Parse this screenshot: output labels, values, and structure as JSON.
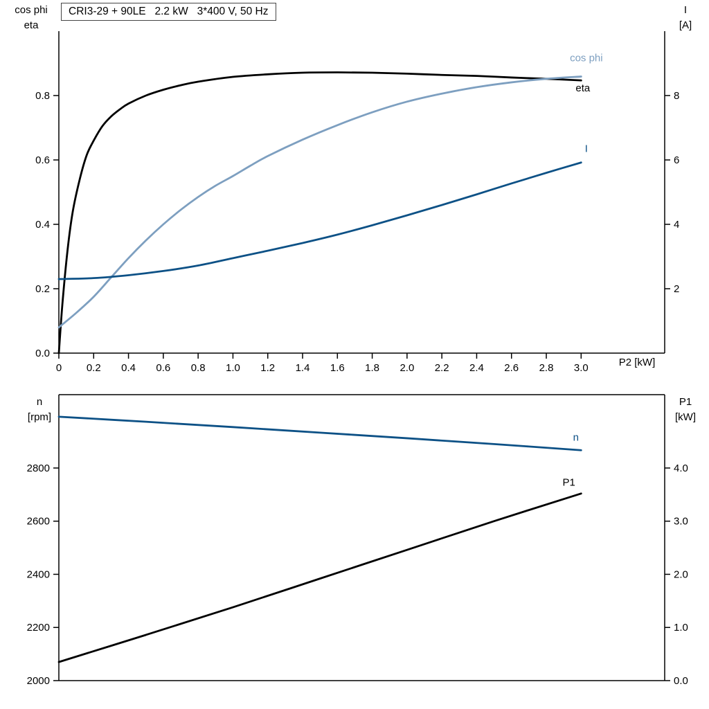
{
  "title_box": "CRI3-29 + 90LE   2.2 kW   3*400 V, 50 Hz",
  "chart_data": [
    {
      "id": "top",
      "type": "line",
      "x_axis": {
        "label": "P2 [kW]",
        "range": [
          0,
          3.48
        ],
        "ticks": [
          0,
          0.2,
          0.4,
          0.6,
          0.8,
          1.0,
          1.2,
          1.4,
          1.6,
          1.8,
          2.0,
          2.2,
          2.4,
          2.6,
          2.8,
          3.0
        ],
        "tick_labels": [
          "0",
          "0.2",
          "0.4",
          "0.6",
          "0.8",
          "1.0",
          "1.2",
          "1.4",
          "1.6",
          "1.8",
          "2.0",
          "2.2",
          "2.4",
          "2.6",
          "2.8",
          "3.0"
        ]
      },
      "left_axis": {
        "label_lines": [
          "cos phi",
          "eta"
        ],
        "range": [
          0,
          1.0
        ],
        "ticks": [
          0.0,
          0.2,
          0.4,
          0.6,
          0.8
        ],
        "tick_labels": [
          "0.0",
          "0.2",
          "0.4",
          "0.6",
          "0.8"
        ]
      },
      "right_axis": {
        "label_lines": [
          "I",
          "[A]"
        ],
        "range": [
          0,
          10
        ],
        "ticks": [
          2,
          4,
          6,
          8
        ],
        "tick_labels": [
          "2",
          "4",
          "6",
          "8"
        ]
      },
      "grid": false,
      "series": [
        {
          "name": "eta",
          "axis": "left",
          "color": "#000000",
          "label": {
            "text": "eta",
            "x": 3.01,
            "y": 0.813
          },
          "points": [
            [
              0,
              0
            ],
            [
              0.02,
              0.15
            ],
            [
              0.05,
              0.32
            ],
            [
              0.08,
              0.44
            ],
            [
              0.12,
              0.54
            ],
            [
              0.16,
              0.615
            ],
            [
              0.2,
              0.66
            ],
            [
              0.25,
              0.705
            ],
            [
              0.3,
              0.735
            ],
            [
              0.35,
              0.757
            ],
            [
              0.4,
              0.775
            ],
            [
              0.5,
              0.8
            ],
            [
              0.6,
              0.818
            ],
            [
              0.7,
              0.832
            ],
            [
              0.8,
              0.843
            ],
            [
              1.0,
              0.858
            ],
            [
              1.2,
              0.866
            ],
            [
              1.4,
              0.871
            ],
            [
              1.6,
              0.872
            ],
            [
              1.8,
              0.871
            ],
            [
              2.0,
              0.868
            ],
            [
              2.2,
              0.864
            ],
            [
              2.4,
              0.861
            ],
            [
              2.6,
              0.856
            ],
            [
              2.8,
              0.852
            ],
            [
              3.0,
              0.847
            ]
          ]
        },
        {
          "name": "cos_phi",
          "axis": "left",
          "color": "#7d9fc0",
          "label": {
            "text": "cos phi",
            "x": 3.03,
            "y": 0.906
          },
          "points": [
            [
              0,
              0.08
            ],
            [
              0.1,
              0.125
            ],
            [
              0.2,
              0.175
            ],
            [
              0.3,
              0.235
            ],
            [
              0.4,
              0.295
            ],
            [
              0.5,
              0.35
            ],
            [
              0.6,
              0.4
            ],
            [
              0.7,
              0.445
            ],
            [
              0.8,
              0.485
            ],
            [
              0.9,
              0.52
            ],
            [
              1.0,
              0.55
            ],
            [
              1.1,
              0.582
            ],
            [
              1.2,
              0.612
            ],
            [
              1.4,
              0.663
            ],
            [
              1.6,
              0.708
            ],
            [
              1.8,
              0.748
            ],
            [
              2.0,
              0.781
            ],
            [
              2.2,
              0.806
            ],
            [
              2.4,
              0.826
            ],
            [
              2.6,
              0.841
            ],
            [
              2.8,
              0.852
            ],
            [
              3.0,
              0.859
            ]
          ]
        },
        {
          "name": "I",
          "axis": "right",
          "color": "#0d5186",
          "label": {
            "text": "I",
            "x": 3.03,
            "y": 6.25
          },
          "points": [
            [
              0,
              2.3
            ],
            [
              0.2,
              2.33
            ],
            [
              0.4,
              2.42
            ],
            [
              0.6,
              2.55
            ],
            [
              0.8,
              2.72
            ],
            [
              1.0,
              2.95
            ],
            [
              1.2,
              3.18
            ],
            [
              1.4,
              3.42
            ],
            [
              1.6,
              3.68
            ],
            [
              1.8,
              3.97
            ],
            [
              2.0,
              4.28
            ],
            [
              2.2,
              4.6
            ],
            [
              2.4,
              4.93
            ],
            [
              2.6,
              5.27
            ],
            [
              2.8,
              5.6
            ],
            [
              3.0,
              5.92
            ]
          ]
        }
      ]
    },
    {
      "id": "bottom",
      "type": "line",
      "x_axis": {
        "label": "",
        "range": [
          0,
          3.48
        ],
        "ticks": [],
        "tick_labels": []
      },
      "left_axis": {
        "label_lines": [
          "n",
          "[rpm]"
        ],
        "range": [
          2000,
          3076
        ],
        "ticks": [
          2000,
          2200,
          2400,
          2600,
          2800
        ],
        "tick_labels": [
          "2000",
          "2200",
          "2400",
          "2600",
          "2800"
        ]
      },
      "right_axis": {
        "label_lines": [
          "P1",
          "[kW]"
        ],
        "range": [
          0,
          5.38
        ],
        "ticks": [
          0,
          1,
          2,
          3,
          4
        ],
        "tick_labels": [
          "0.0",
          "1.0",
          "2.0",
          "3.0",
          "4.0"
        ]
      },
      "grid": false,
      "series": [
        {
          "name": "n",
          "axis": "left",
          "color": "#0d5186",
          "label": {
            "text": "n",
            "x": 2.97,
            "y": 2903
          },
          "points": [
            [
              0,
              2993
            ],
            [
              0.5,
              2974
            ],
            [
              1.0,
              2954
            ],
            [
              1.5,
              2933
            ],
            [
              2.0,
              2912
            ],
            [
              2.5,
              2890
            ],
            [
              3.0,
              2867
            ]
          ]
        },
        {
          "name": "P1",
          "axis": "right",
          "color": "#000000",
          "label": {
            "text": "P1",
            "x": 2.93,
            "y": 3.67
          },
          "points": [
            [
              0,
              0.35
            ],
            [
              0.5,
              0.86
            ],
            [
              1.0,
              1.38
            ],
            [
              1.5,
              1.92
            ],
            [
              2.0,
              2.46
            ],
            [
              2.5,
              3.0
            ],
            [
              3.0,
              3.52
            ]
          ]
        }
      ]
    }
  ]
}
